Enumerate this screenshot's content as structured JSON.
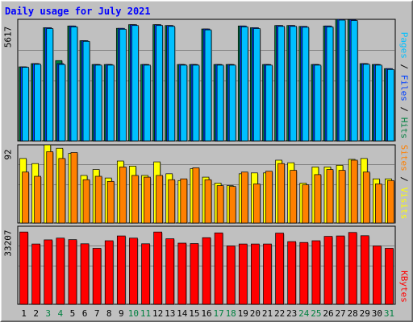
{
  "title": "Daily usage for July 2021",
  "colors": {
    "background": "#c0c0c0",
    "plot_bg": "#c0c0c0",
    "title": "#0000ff",
    "hits": "#008040",
    "files": "#0040ff",
    "pages": "#00c0ff",
    "visits": "#ffff00",
    "sites": "#ff8000",
    "kbytes": "#ff0000",
    "weekend_label": "#008040",
    "weekday_label": "#000000"
  },
  "legend": {
    "top": {
      "pages": "Pages",
      "sep1": " / ",
      "files": "Files",
      "sep2": " / ",
      "hits": "Hits"
    },
    "middle": {
      "sites": "Sites",
      "sep": " / ",
      "visits": "Visits"
    },
    "bottom": {
      "kbytes": "KBytes"
    }
  },
  "chart_data": [
    {
      "type": "bar",
      "panel": "hits-files-pages",
      "ymax_label": "5617",
      "ylim": [
        0,
        5617
      ],
      "categories": [
        "1",
        "2",
        "3",
        "4",
        "5",
        "6",
        "7",
        "8",
        "9",
        "10",
        "11",
        "12",
        "13",
        "14",
        "15",
        "16",
        "17",
        "18",
        "19",
        "20",
        "21",
        "22",
        "23",
        "24",
        "25",
        "26",
        "27",
        "28",
        "29",
        "30",
        "31"
      ],
      "weekend": [
        3,
        4,
        10,
        11,
        17,
        18,
        24,
        25,
        31
      ],
      "series": [
        {
          "name": "Hits",
          "values": [
            3420,
            3570,
            5230,
            3710,
            5310,
            4630,
            3530,
            3530,
            5200,
            5370,
            3530,
            5370,
            5330,
            3530,
            3530,
            5170,
            3530,
            3530,
            5310,
            5230,
            3530,
            5330,
            5330,
            5290,
            3530,
            5310,
            5617,
            5600,
            3570,
            3530,
            3340
          ]
        },
        {
          "name": "Files",
          "values": [
            3420,
            3570,
            5230,
            3570,
            5310,
            4630,
            3530,
            3530,
            5200,
            5370,
            3530,
            5370,
            5330,
            3530,
            3530,
            5170,
            3530,
            3530,
            5310,
            5230,
            3530,
            5330,
            5330,
            5290,
            3530,
            5310,
            5617,
            5600,
            3570,
            3530,
            3340
          ]
        },
        {
          "name": "Pages",
          "values": [
            3400,
            3540,
            5190,
            3530,
            5270,
            4600,
            3500,
            3500,
            5160,
            5330,
            3500,
            5330,
            5290,
            3500,
            3500,
            5130,
            3500,
            3500,
            5270,
            5190,
            3500,
            5290,
            5290,
            5250,
            3500,
            5270,
            5580,
            5560,
            3540,
            3500,
            3300
          ]
        }
      ]
    },
    {
      "type": "bar",
      "panel": "visits-sites",
      "ymax_label": "92",
      "ylim": [
        0,
        92
      ],
      "categories": [
        "1",
        "2",
        "3",
        "4",
        "5",
        "6",
        "7",
        "8",
        "9",
        "10",
        "11",
        "12",
        "13",
        "14",
        "15",
        "16",
        "17",
        "18",
        "19",
        "20",
        "21",
        "22",
        "23",
        "24",
        "25",
        "26",
        "27",
        "28",
        "29",
        "30",
        "31"
      ],
      "series": [
        {
          "name": "Visits",
          "values": [
            76,
            70,
            92,
            88,
            82,
            56,
            63,
            53,
            73,
            67,
            56,
            72,
            58,
            50,
            64,
            54,
            47,
            44,
            58,
            59,
            59,
            74,
            71,
            47,
            66,
            66,
            68,
            75,
            76,
            52,
            52
          ]
        },
        {
          "name": "Sites",
          "values": [
            60,
            55,
            84,
            76,
            83,
            51,
            55,
            49,
            66,
            56,
            54,
            56,
            51,
            52,
            65,
            51,
            44,
            43,
            60,
            46,
            61,
            70,
            62,
            45,
            57,
            63,
            62,
            74,
            60,
            46,
            50
          ]
        }
      ]
    },
    {
      "type": "bar",
      "panel": "kbytes",
      "ymax_label": "33207",
      "ylim": [
        0,
        33207
      ],
      "categories": [
        "1",
        "2",
        "3",
        "4",
        "5",
        "6",
        "7",
        "8",
        "9",
        "10",
        "11",
        "12",
        "13",
        "14",
        "15",
        "16",
        "17",
        "18",
        "19",
        "20",
        "21",
        "22",
        "23",
        "24",
        "25",
        "26",
        "27",
        "28",
        "29",
        "30",
        "31"
      ],
      "series": [
        {
          "name": "KBytes",
          "values": [
            33207,
            27700,
            29600,
            30400,
            29700,
            27800,
            25700,
            29200,
            31400,
            30400,
            27800,
            33207,
            30100,
            28100,
            27900,
            30600,
            32800,
            26800,
            27700,
            27700,
            27700,
            32700,
            28800,
            28400,
            29200,
            31200,
            31400,
            33000,
            31500,
            26800,
            25700
          ]
        }
      ]
    }
  ]
}
